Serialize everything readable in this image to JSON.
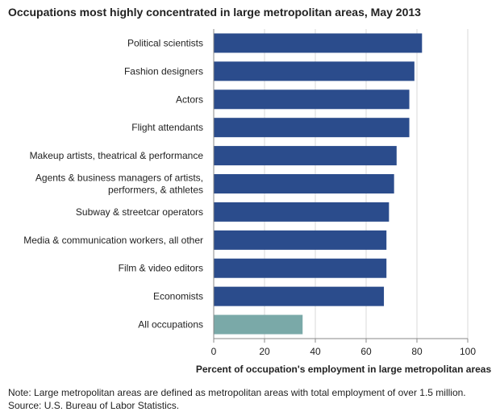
{
  "chart_data": {
    "type": "bar",
    "orientation": "horizontal",
    "title": "Occupations most highly concentrated in large metropolitan areas, May 2013",
    "xlabel": "Percent of occupation's  employment in large metropolitan areas",
    "ylabel": "",
    "xlim": [
      0,
      100
    ],
    "xticks": [
      0,
      20,
      40,
      60,
      80,
      100
    ],
    "grid": "vertical",
    "categories": [
      [
        "Political scientists"
      ],
      [
        "Fashion designers"
      ],
      [
        "Actors"
      ],
      [
        "Flight attendants"
      ],
      [
        "Makeup artists, theatrical & performance"
      ],
      [
        "Agents & business managers of artists,",
        "performers, & athletes"
      ],
      [
        "Subway & streetcar operators"
      ],
      [
        "Media & communication workers, all other"
      ],
      [
        "Film & video editors"
      ],
      [
        "Economists"
      ],
      [
        "All occupations"
      ]
    ],
    "values": [
      82,
      79,
      77,
      77,
      72,
      71,
      69,
      68,
      68,
      67,
      35
    ],
    "colors": [
      "#2b4c8c",
      "#2b4c8c",
      "#2b4c8c",
      "#2b4c8c",
      "#2b4c8c",
      "#2b4c8c",
      "#2b4c8c",
      "#2b4c8c",
      "#2b4c8c",
      "#2b4c8c",
      "#7aa9a8"
    ]
  },
  "notes": {
    "note": "Note: Large metropolitan areas are defined as metropolitan areas with total employment of over 1.5 million.",
    "source": "Source: U.S. Bureau of Labor Statistics."
  }
}
